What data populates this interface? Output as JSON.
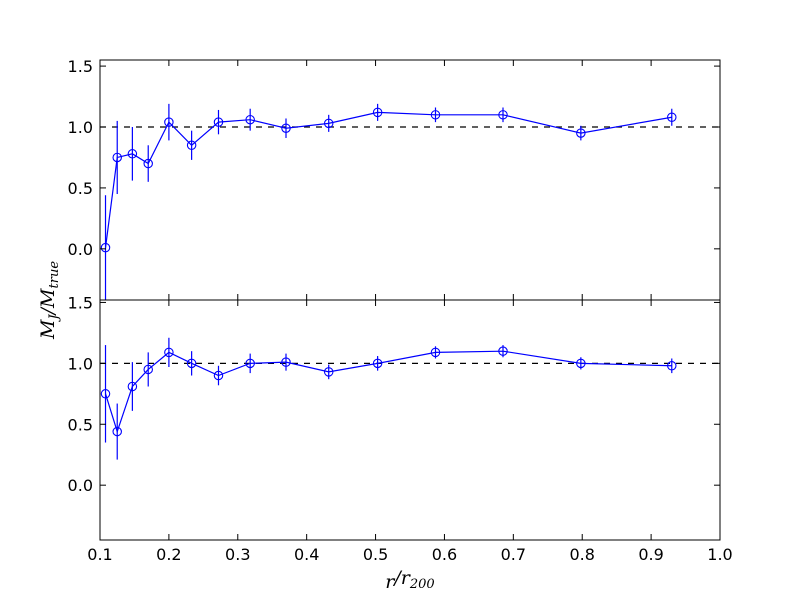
{
  "chart_data": {
    "type": "line",
    "xlabel": "r/r200",
    "ylabel": "MJ/Mtrue",
    "xlim": [
      0.1,
      1.0
    ],
    "x_ticks": [
      "0.1",
      "0.2",
      "0.3",
      "0.4",
      "0.5",
      "0.6",
      "0.7",
      "0.8",
      "0.9",
      "1.0"
    ],
    "reference_line": 1.0,
    "colors": {
      "series": "#0000ff",
      "reference": "#000000"
    },
    "panels": [
      {
        "ylim": [
          -0.42,
          1.55
        ],
        "y_ticks": [
          "0.0",
          "0.5",
          "1.0",
          "1.5"
        ],
        "series": [
          {
            "x": [
              0.108,
              0.125,
              0.147,
              0.17,
              0.2,
              0.233,
              0.272,
              0.318,
              0.37,
              0.432,
              0.503,
              0.587,
              0.685,
              0.798,
              0.93
            ],
            "y": [
              0.01,
              0.75,
              0.78,
              0.7,
              1.04,
              0.85,
              1.04,
              1.06,
              0.99,
              1.03,
              1.12,
              1.1,
              1.1,
              0.95,
              1.08
            ],
            "err": [
              0.43,
              0.3,
              0.22,
              0.15,
              0.15,
              0.12,
              0.1,
              0.09,
              0.08,
              0.07,
              0.07,
              0.06,
              0.06,
              0.06,
              0.07
            ]
          }
        ]
      },
      {
        "ylim": [
          -0.45,
          1.52
        ],
        "y_ticks": [
          "0.0",
          "0.5",
          "1.0",
          "1.5"
        ],
        "series": [
          {
            "x": [
              0.108,
              0.125,
              0.147,
              0.17,
              0.2,
              0.233,
              0.272,
              0.318,
              0.37,
              0.432,
              0.503,
              0.587,
              0.685,
              0.798,
              0.93
            ],
            "y": [
              0.75,
              0.44,
              0.81,
              0.95,
              1.09,
              1.0,
              0.9,
              1.0,
              1.01,
              0.93,
              1.0,
              1.09,
              1.1,
              1.0,
              0.98
            ],
            "err": [
              0.4,
              0.23,
              0.2,
              0.14,
              0.12,
              0.1,
              0.08,
              0.08,
              0.07,
              0.06,
              0.06,
              0.05,
              0.05,
              0.05,
              0.06
            ]
          }
        ]
      }
    ]
  }
}
